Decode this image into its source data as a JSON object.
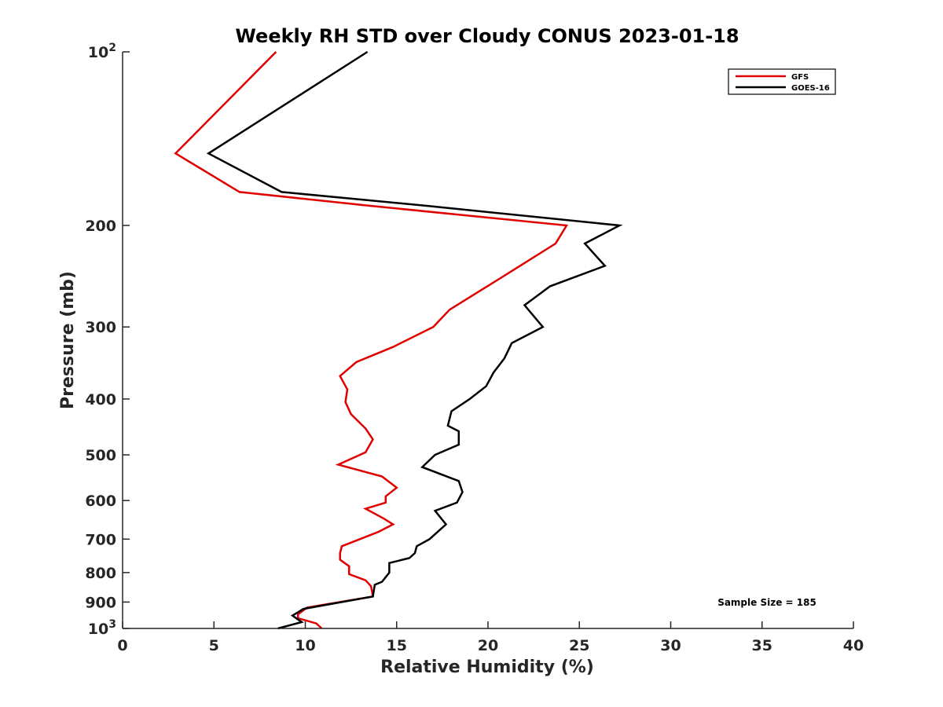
{
  "chart_data": {
    "type": "line",
    "title": "Weekly RH STD over Cloudy CONUS 2023-01-18",
    "xlabel": "Relative Humidity (%)",
    "ylabel": "Pressure (mb)",
    "xlim": [
      0,
      40
    ],
    "ylim": [
      100,
      1000
    ],
    "y_scale": "log",
    "y_reversed": true,
    "x_ticks": [
      0,
      5,
      10,
      15,
      20,
      25,
      30,
      35,
      40
    ],
    "y_ticks": [
      {
        "value": 100,
        "label": "10",
        "sup": "2"
      },
      {
        "value": 200,
        "label": "200",
        "sup": ""
      },
      {
        "value": 300,
        "label": "300",
        "sup": ""
      },
      {
        "value": 400,
        "label": "400",
        "sup": ""
      },
      {
        "value": 500,
        "label": "500",
        "sup": ""
      },
      {
        "value": 600,
        "label": "600",
        "sup": ""
      },
      {
        "value": 700,
        "label": "700",
        "sup": ""
      },
      {
        "value": 800,
        "label": "800",
        "sup": ""
      },
      {
        "value": 900,
        "label": "900",
        "sup": ""
      },
      {
        "value": 1000,
        "label": "10",
        "sup": "3"
      }
    ],
    "grid": false,
    "legend_position": "top-right",
    "annotation": "Sample Size = 185",
    "series": [
      {
        "name": "GFS",
        "color": "#e00000",
        "points": [
          {
            "x": 8.4,
            "y": 100
          },
          {
            "x": 2.9,
            "y": 150
          },
          {
            "x": 6.4,
            "y": 175
          },
          {
            "x": 13.6,
            "y": 185
          },
          {
            "x": 24.3,
            "y": 200
          },
          {
            "x": 23.7,
            "y": 215
          },
          {
            "x": 21.3,
            "y": 240
          },
          {
            "x": 17.9,
            "y": 280
          },
          {
            "x": 17.0,
            "y": 300
          },
          {
            "x": 14.8,
            "y": 325
          },
          {
            "x": 12.8,
            "y": 345
          },
          {
            "x": 11.9,
            "y": 365
          },
          {
            "x": 12.3,
            "y": 385
          },
          {
            "x": 12.2,
            "y": 405
          },
          {
            "x": 12.5,
            "y": 425
          },
          {
            "x": 13.3,
            "y": 450
          },
          {
            "x": 13.7,
            "y": 470
          },
          {
            "x": 13.3,
            "y": 495
          },
          {
            "x": 11.8,
            "y": 520
          },
          {
            "x": 14.2,
            "y": 545
          },
          {
            "x": 15.0,
            "y": 570
          },
          {
            "x": 14.4,
            "y": 590
          },
          {
            "x": 14.4,
            "y": 605
          },
          {
            "x": 13.3,
            "y": 620
          },
          {
            "x": 14.3,
            "y": 645
          },
          {
            "x": 14.8,
            "y": 660
          },
          {
            "x": 14.0,
            "y": 680
          },
          {
            "x": 12.0,
            "y": 720
          },
          {
            "x": 11.9,
            "y": 740
          },
          {
            "x": 11.9,
            "y": 760
          },
          {
            "x": 12.4,
            "y": 780
          },
          {
            "x": 12.4,
            "y": 805
          },
          {
            "x": 13.3,
            "y": 825
          },
          {
            "x": 13.6,
            "y": 845
          },
          {
            "x": 13.7,
            "y": 880
          },
          {
            "x": 10.1,
            "y": 920
          },
          {
            "x": 9.6,
            "y": 945
          },
          {
            "x": 9.6,
            "y": 960
          },
          {
            "x": 10.6,
            "y": 980
          },
          {
            "x": 10.9,
            "y": 1000
          }
        ]
      },
      {
        "name": "GOES-16",
        "color": "#000000",
        "points": [
          {
            "x": 13.4,
            "y": 100
          },
          {
            "x": 4.7,
            "y": 150
          },
          {
            "x": 8.7,
            "y": 175
          },
          {
            "x": 16.7,
            "y": 185
          },
          {
            "x": 27.2,
            "y": 200
          },
          {
            "x": 25.3,
            "y": 215
          },
          {
            "x": 26.4,
            "y": 235
          },
          {
            "x": 23.4,
            "y": 255
          },
          {
            "x": 22.0,
            "y": 275
          },
          {
            "x": 23.0,
            "y": 300
          },
          {
            "x": 21.3,
            "y": 320
          },
          {
            "x": 20.9,
            "y": 340
          },
          {
            "x": 20.3,
            "y": 360
          },
          {
            "x": 19.9,
            "y": 380
          },
          {
            "x": 19.0,
            "y": 400
          },
          {
            "x": 18.0,
            "y": 420
          },
          {
            "x": 17.8,
            "y": 445
          },
          {
            "x": 18.4,
            "y": 455
          },
          {
            "x": 18.4,
            "y": 480
          },
          {
            "x": 17.1,
            "y": 500
          },
          {
            "x": 16.4,
            "y": 525
          },
          {
            "x": 18.4,
            "y": 555
          },
          {
            "x": 18.6,
            "y": 580
          },
          {
            "x": 18.3,
            "y": 605
          },
          {
            "x": 17.1,
            "y": 625
          },
          {
            "x": 17.7,
            "y": 660
          },
          {
            "x": 16.8,
            "y": 700
          },
          {
            "x": 16.1,
            "y": 720
          },
          {
            "x": 16.0,
            "y": 740
          },
          {
            "x": 15.7,
            "y": 755
          },
          {
            "x": 14.6,
            "y": 770
          },
          {
            "x": 14.6,
            "y": 800
          },
          {
            "x": 14.2,
            "y": 830
          },
          {
            "x": 13.8,
            "y": 840
          },
          {
            "x": 13.7,
            "y": 880
          },
          {
            "x": 9.9,
            "y": 925
          },
          {
            "x": 9.3,
            "y": 950
          },
          {
            "x": 9.8,
            "y": 975
          },
          {
            "x": 8.5,
            "y": 1000
          }
        ]
      }
    ]
  }
}
